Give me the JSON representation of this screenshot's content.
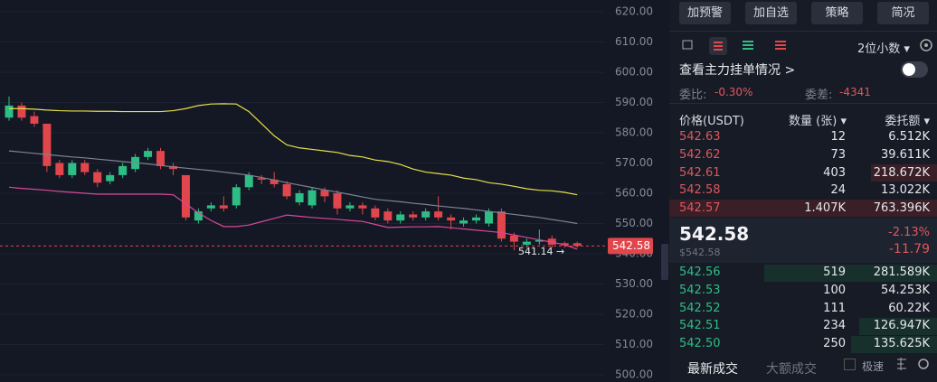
{
  "chart_data": {
    "type": "candlestick",
    "open": [
      585,
      589,
      585.5,
      583,
      570,
      566,
      570,
      567,
      564,
      566,
      568,
      572,
      574,
      569,
      566,
      551,
      555,
      556,
      556,
      562,
      565,
      564.5,
      563,
      557,
      556,
      561,
      560,
      555,
      556,
      555,
      554,
      551,
      553,
      552,
      554,
      552,
      550,
      551,
      550,
      554,
      546,
      543,
      544,
      545,
      543.5,
      543.5
    ],
    "high": [
      592,
      590,
      587,
      583,
      571,
      571,
      571,
      568,
      567,
      570,
      573,
      575,
      575,
      570,
      566,
      555,
      557,
      559,
      563,
      567,
      566,
      567,
      564,
      561,
      562,
      562,
      561,
      557,
      557,
      556,
      555,
      554,
      554,
      555,
      559,
      553,
      552,
      553,
      555,
      555,
      547,
      545,
      548,
      546,
      544,
      544
    ],
    "low": [
      584,
      584,
      582,
      567,
      565,
      565,
      566,
      562,
      563,
      565,
      567,
      571,
      568,
      566,
      551,
      550,
      554,
      554,
      555,
      561,
      563,
      562,
      558,
      556,
      555,
      557,
      553,
      554,
      553,
      551,
      550,
      550,
      551,
      551,
      551,
      548,
      549,
      550,
      549,
      544,
      541.14,
      542,
      543,
      542,
      542,
      542
    ],
    "close": [
      589,
      585,
      583,
      569,
      566,
      570,
      567,
      563.5,
      566,
      569,
      572,
      574,
      569,
      568,
      552,
      554,
      556,
      555,
      562,
      566,
      564.5,
      563,
      559,
      560,
      561,
      559,
      555,
      556,
      555,
      552,
      551,
      553,
      552,
      554,
      552,
      551,
      551,
      552,
      554,
      545,
      544,
      544,
      544.5,
      543,
      542.8,
      542.58
    ],
    "series": [
      {
        "color": "#e6e04a",
        "values": [
          588,
          588,
          587.8,
          587.5,
          587.3,
          587.2,
          587.2,
          587.1,
          587.1,
          587,
          587,
          587,
          587,
          587.3,
          588,
          589,
          589.5,
          589.6,
          589.5,
          587,
          583,
          579,
          576,
          575,
          574.5,
          574,
          573.5,
          572.5,
          572,
          571,
          570.5,
          569.5,
          568,
          567,
          566.5,
          566,
          565,
          564.5,
          563.5,
          563,
          562.3,
          561.5,
          561,
          560.8,
          560.3,
          559.5
        ]
      },
      {
        "color": "#7d8394",
        "values": [
          574,
          573.6,
          573.2,
          572.8,
          572.4,
          572,
          571.7,
          571.3,
          570.9,
          570.5,
          570.1,
          569.7,
          569.2,
          568.7,
          568.3,
          567.9,
          567.5,
          567,
          566.5,
          566,
          565.2,
          564.4,
          563.5,
          562.7,
          561.9,
          561.1,
          560.4,
          559.6,
          558.8,
          558,
          557.6,
          557.2,
          556.7,
          556.3,
          555.8,
          555.4,
          555,
          554.5,
          554,
          553.5,
          553,
          552.5,
          552,
          551.3,
          550.7,
          550
        ]
      },
      {
        "color": "#d9479c",
        "values": [
          562,
          561.6,
          561.3,
          561,
          560.6,
          560.3,
          560,
          559.7,
          559.7,
          559.7,
          559.7,
          559.7,
          559.7,
          559.5,
          556.5,
          553.5,
          551,
          549,
          549,
          549.5,
          550.6,
          551.7,
          552.8,
          552.4,
          552,
          551.7,
          551.4,
          551,
          550.7,
          549.7,
          548.7,
          548.8,
          548.9,
          548.9,
          549,
          548.6,
          548.2,
          547.8,
          547.4,
          547,
          546.2,
          545.4,
          544.6,
          543.8,
          543,
          541.5
        ]
      }
    ],
    "up_color": "#2ebd85",
    "down_color": "#e0464b",
    "ylim": [
      497.6,
      623.9
    ],
    "yticks": [
      {
        "value": 500,
        "label": "500.00"
      },
      {
        "value": 510,
        "label": "510.00"
      },
      {
        "value": 520,
        "label": "520.00"
      },
      {
        "value": 530,
        "label": "530.00"
      },
      {
        "value": 540,
        "label": "540.00"
      },
      {
        "value": 550,
        "label": "550.00"
      },
      {
        "value": 560,
        "label": "560.00"
      },
      {
        "value": 570,
        "label": "570.00"
      },
      {
        "value": 580,
        "label": "580.00"
      },
      {
        "value": 590,
        "label": "590.00"
      },
      {
        "value": 600,
        "label": "600.00"
      },
      {
        "value": 610,
        "label": "610.00"
      },
      {
        "value": 620,
        "label": "620.00"
      }
    ],
    "grid": true,
    "last_price": 542.58,
    "annotation": "541.14 →"
  },
  "panel": {
    "buttons": [
      "加预警",
      "加自选",
      "策略",
      "简况"
    ],
    "decimals": "2位小数",
    "depth_link": "查看主力挂单情况 >",
    "ratio": {
      "label": "委比:",
      "value": "-0.30%"
    },
    "diff": {
      "label": "委差:",
      "value": "-4341"
    },
    "headers": [
      "价格(USDT)",
      "数量 (张)",
      "委托额"
    ],
    "asks": [
      [
        "542.63",
        "12",
        "6.512K"
      ],
      [
        "542.62",
        "73",
        "39.611K"
      ],
      [
        "542.61",
        "403",
        "218.672K"
      ],
      [
        "542.58",
        "24",
        "13.022K"
      ],
      [
        "542.57",
        "1.407K",
        "763.396K"
      ]
    ],
    "mid": {
      "price": "542.58",
      "usd": "$542.58",
      "pct": "-2.13%",
      "change": "-11.79"
    },
    "bids": [
      [
        "542.56",
        "519",
        "281.589K"
      ],
      [
        "542.53",
        "100",
        "54.253K"
      ],
      [
        "542.52",
        "111",
        "60.22K"
      ],
      [
        "542.51",
        "234",
        "126.947K"
      ],
      [
        "542.50",
        "250",
        "135.625K"
      ]
    ],
    "tabs": [
      "最新成交",
      "大额成交",
      "极速"
    ]
  }
}
